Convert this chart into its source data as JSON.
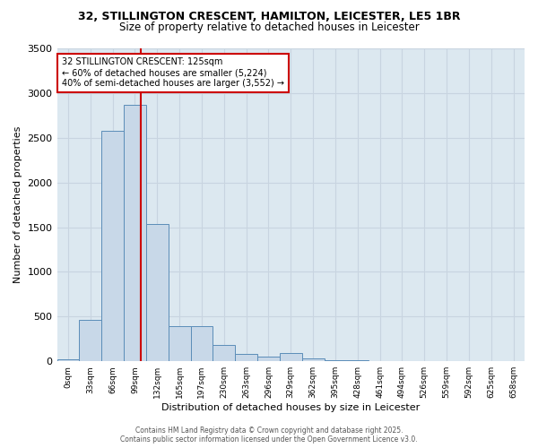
{
  "title_line1": "32, STILLINGTON CRESCENT, HAMILTON, LEICESTER, LE5 1BR",
  "title_line2": "Size of property relative to detached houses in Leicester",
  "xlabel": "Distribution of detached houses by size in Leicester",
  "ylabel": "Number of detached properties",
  "bar_counts": [
    20,
    460,
    2580,
    2870,
    1540,
    390,
    390,
    180,
    80,
    50,
    90,
    30,
    10,
    10,
    5,
    5,
    5,
    3,
    2,
    2,
    2
  ],
  "bin_labels": [
    "0sqm",
    "33sqm",
    "66sqm",
    "99sqm",
    "132sqm",
    "165sqm",
    "197sqm",
    "230sqm",
    "263sqm",
    "296sqm",
    "329sqm",
    "362sqm",
    "395sqm",
    "428sqm",
    "461sqm",
    "494sqm",
    "526sqm",
    "559sqm",
    "592sqm",
    "625sqm",
    "658sqm"
  ],
  "bar_color": "#c8d8e8",
  "bar_edge_color": "#5b8db8",
  "property_line_x": 3.78,
  "property_line_color": "#cc0000",
  "annotation_text": "32 STILLINGTON CRESCENT: 125sqm\n← 60% of detached houses are smaller (5,224)\n40% of semi-detached houses are larger (3,552) →",
  "annotation_box_color": "#ffffff",
  "annotation_box_edge": "#cc0000",
  "annotation_fontsize": 7.0,
  "ylim": [
    0,
    3500
  ],
  "yticks": [
    0,
    500,
    1000,
    1500,
    2000,
    2500,
    3000,
    3500
  ],
  "grid_color": "#c8d4e0",
  "figure_background": "#ffffff",
  "plot_background": "#dce8f0",
  "footer_line1": "Contains HM Land Registry data © Crown copyright and database right 2025.",
  "footer_line2": "Contains public sector information licensed under the Open Government Licence v3.0."
}
